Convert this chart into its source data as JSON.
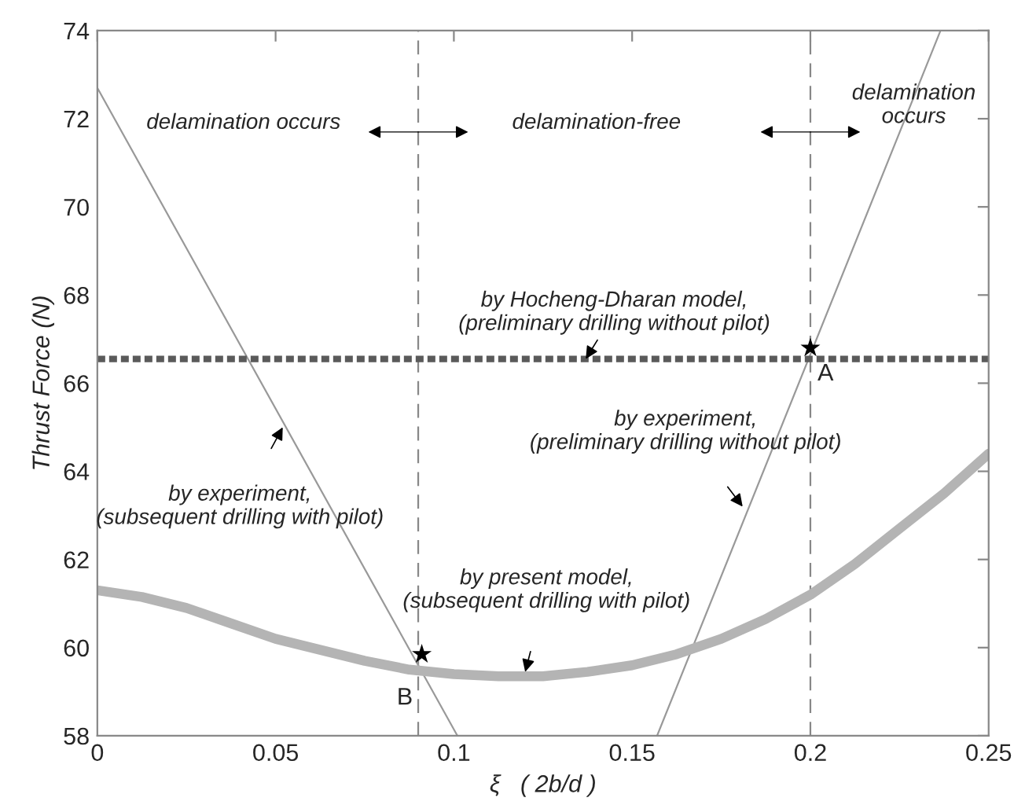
{
  "chart_data": {
    "type": "line",
    "xlabel": "ξ   ( 2b/d )",
    "ylabel": "Thrust Force (N)",
    "xlim": [
      0,
      0.25
    ],
    "ylim": [
      58,
      74
    ],
    "xticks": [
      0,
      0.05,
      0.1,
      0.15,
      0.2,
      0.25
    ],
    "yticks": [
      58,
      60,
      62,
      64,
      66,
      68,
      70,
      72,
      74
    ],
    "grid": false,
    "legend": false,
    "series": [
      {
        "color": "#999999",
        "x": [
          0,
          0.101
        ],
        "values": [
          72.7,
          58
        ],
        "line_style": "solid"
      },
      {
        "color": "#999999",
        "x": [
          0.157,
          0.2365
        ],
        "values": [
          58,
          74
        ],
        "line_style": "solid"
      },
      {
        "color": "#5a5a5a",
        "x": [
          0,
          0.25
        ],
        "values": [
          66.55,
          66.55
        ],
        "line_style": "dotted"
      },
      {
        "color": "#b4b4b4",
        "x": [
          0,
          0.0125,
          0.025,
          0.0375,
          0.05,
          0.0625,
          0.075,
          0.0875,
          0.1,
          0.1125,
          0.125,
          0.1375,
          0.15,
          0.1625,
          0.175,
          0.1875,
          0.2,
          0.2125,
          0.225,
          0.2375,
          0.25
        ],
        "values": [
          61.3,
          61.15,
          60.9,
          60.55,
          60.2,
          59.95,
          59.7,
          59.5,
          59.4,
          59.35,
          59.35,
          59.45,
          59.6,
          59.85,
          60.2,
          60.65,
          61.2,
          61.9,
          62.7,
          63.5,
          64.4
        ],
        "line_style": "solid"
      },
      {
        "type": "scatter",
        "color": "#000000",
        "marker": "star",
        "x": [
          0.2,
          0.091
        ],
        "values": [
          66.8,
          59.85
        ]
      }
    ],
    "ref_lines": [
      {
        "axis": "x",
        "value": 0.09,
        "color": "#888888",
        "line_style": "dashed"
      },
      {
        "axis": "x",
        "value": 0.2,
        "color": "#888888",
        "line_style": "dashed"
      }
    ],
    "annotations": [
      "delamination occurs",
      "delamination-free",
      "delamination\noccurs",
      {
        "text": "by Hocheng-Dharan model,\n(preliminary drilling without pilot)",
        "x": 0.137,
        "y": 66.55
      },
      {
        "text": "by experiment,\n(preliminary drilling without pilot)",
        "x": 0.181,
        "y": 63.2
      },
      {
        "text": "by experiment,\n(subsequent drilling with pilot)",
        "x": 0.052,
        "y": 65.0
      },
      {
        "text": "by present model,\n(subsequent drilling with pilot)",
        "x": 0.12,
        "y": 59.45
      },
      {
        "text": "A",
        "x": 0.2,
        "y": 66.8
      },
      {
        "text": "B",
        "x": 0.091,
        "y": 59.85
      }
    ]
  }
}
